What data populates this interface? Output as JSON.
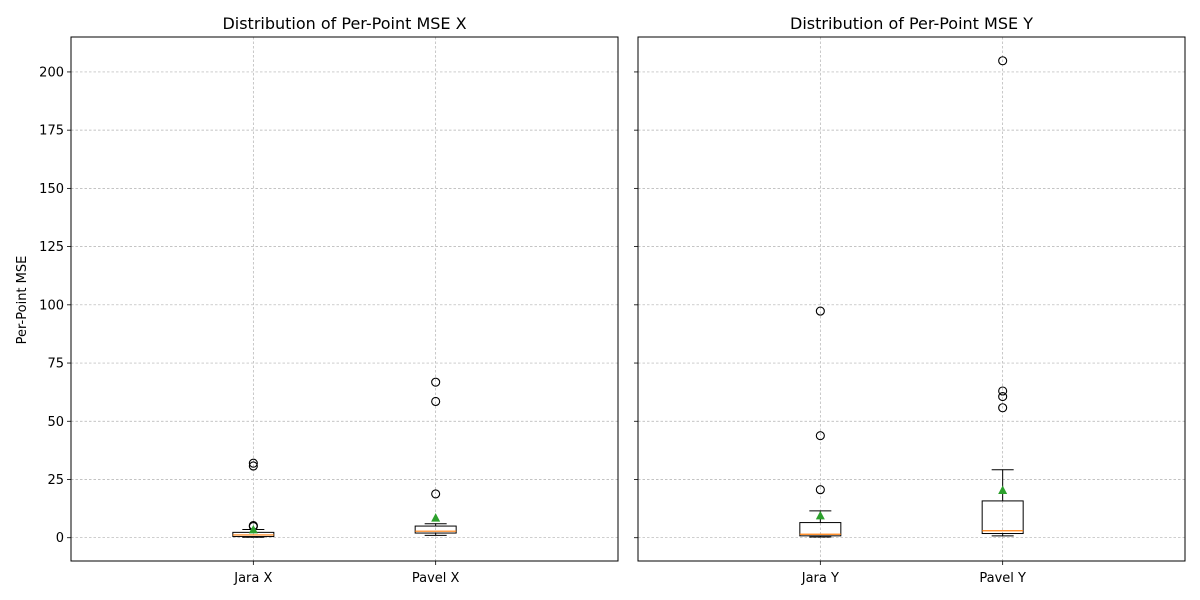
{
  "colors": {
    "box": "#000000",
    "median": "#ff7f0e",
    "mean": "#2ca02c",
    "grid": "#b0b0b0"
  },
  "ylabel": "Per-Point MSE",
  "chart_data": [
    {
      "type": "box",
      "title": "Distribution of Per-Point MSE X",
      "xlabel": "",
      "ylabel": "Per-Point MSE",
      "ylim": [
        -10,
        215
      ],
      "yticks": [
        0,
        25,
        50,
        75,
        100,
        125,
        150,
        175,
        200
      ],
      "grid": true,
      "categories": [
        "Jara X",
        "Pavel X"
      ],
      "boxes": [
        {
          "name": "Jara X",
          "whisker_low": 0.2,
          "q1": 0.5,
          "median": 1.2,
          "q3": 2.3,
          "whisker_high": 3.5,
          "mean": 3.6,
          "outliers": [
            4.8,
            5.2,
            30.8,
            32.0
          ]
        },
        {
          "name": "Pavel X",
          "whisker_low": 1.0,
          "q1": 2.0,
          "median": 2.8,
          "q3": 5.0,
          "whisker_high": 6.0,
          "mean": 8.6,
          "outliers": [
            18.8,
            58.5,
            66.8
          ]
        }
      ]
    },
    {
      "type": "box",
      "title": "Distribution of Per-Point MSE Y",
      "xlabel": "",
      "ylabel": "",
      "ylim": [
        -10,
        215
      ],
      "yticks": [
        0,
        25,
        50,
        75,
        100,
        125,
        150,
        175,
        200
      ],
      "grid": true,
      "categories": [
        "Jara Y",
        "Pavel Y"
      ],
      "boxes": [
        {
          "name": "Jara Y",
          "whisker_low": 0.3,
          "q1": 0.8,
          "median": 1.5,
          "q3": 6.5,
          "whisker_high": 11.5,
          "mean": 9.6,
          "outliers": [
            20.6,
            43.8,
            97.3
          ]
        },
        {
          "name": "Pavel Y",
          "whisker_low": 0.8,
          "q1": 1.8,
          "median": 3.0,
          "q3": 15.8,
          "whisker_high": 29.2,
          "mean": 20.5,
          "outliers": [
            55.8,
            60.6,
            63.0,
            204.8
          ]
        }
      ]
    }
  ]
}
